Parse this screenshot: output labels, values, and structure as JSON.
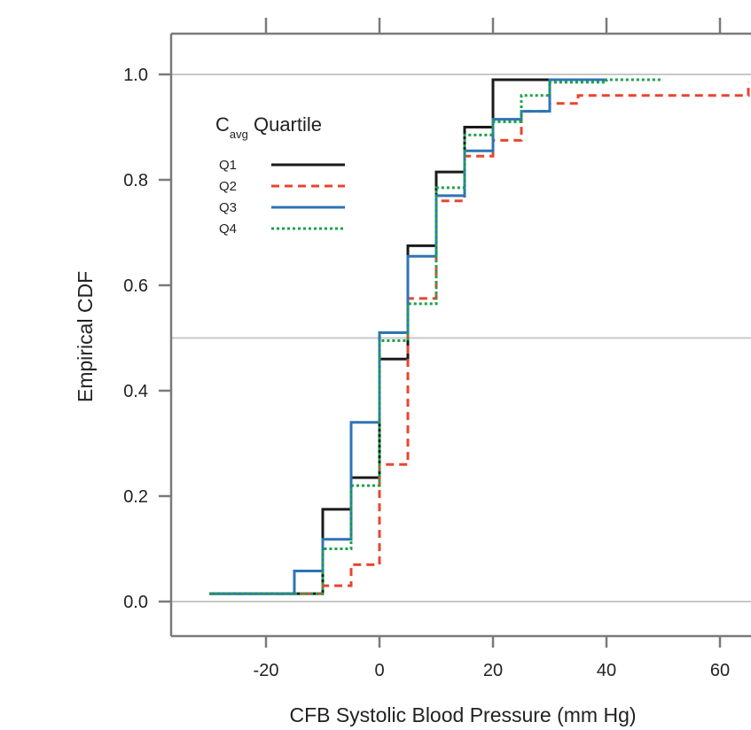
{
  "chart_data": {
    "type": "line",
    "step": true,
    "xlabel": "CFB Systolic Blood Pressure (mm Hg)",
    "ylabel": "Empirical CDF",
    "xlim": [
      -40,
      65
    ],
    "ylim": [
      -0.06,
      1.08
    ],
    "xticks": [
      -20,
      0,
      20,
      40,
      60
    ],
    "xtick_labels": [
      "-20",
      "0",
      "20",
      "40",
      "60"
    ],
    "yticks": [
      0.0,
      0.2,
      0.4,
      0.6,
      0.8,
      1.0
    ],
    "ytick_labels": [
      "0.0",
      "0.2",
      "0.4",
      "0.6",
      "0.8",
      "1.0"
    ],
    "reference_lines_y": [
      0.0,
      0.5,
      1.0
    ],
    "grid": false,
    "legend": {
      "title_main": "C",
      "title_sub": "avg",
      "title_rest": " Quartile",
      "placement": "top-left"
    },
    "series": [
      {
        "name": "Q1",
        "color": "#1a1a1a",
        "dash": "solid",
        "x": [
          -30,
          -10,
          -5,
          0,
          5,
          10,
          15,
          20,
          30,
          40
        ],
        "y": [
          0.015,
          0.175,
          0.235,
          0.46,
          0.675,
          0.815,
          0.9,
          0.99,
          0.99,
          0.99
        ]
      },
      {
        "name": "Q2",
        "color": "#e8452f",
        "dash": "dashed",
        "x": [
          -30,
          -15,
          -10,
          -5,
          0,
          5,
          10,
          15,
          20,
          25,
          30,
          35,
          65
        ],
        "y": [
          0.015,
          0.015,
          0.03,
          0.07,
          0.26,
          0.575,
          0.76,
          0.845,
          0.875,
          0.93,
          0.945,
          0.96,
          0.985
        ]
      },
      {
        "name": "Q3",
        "color": "#2e74b5",
        "dash": "solid",
        "x": [
          -30,
          -15,
          -10,
          -5,
          0,
          5,
          10,
          15,
          20,
          25,
          30,
          40
        ],
        "y": [
          0.015,
          0.058,
          0.118,
          0.34,
          0.51,
          0.655,
          0.77,
          0.855,
          0.915,
          0.93,
          0.99,
          0.99
        ]
      },
      {
        "name": "Q4",
        "color": "#1ba14b",
        "dash": "dotted",
        "x": [
          -30,
          -10,
          -5,
          0,
          5,
          10,
          15,
          20,
          25,
          30,
          40,
          50
        ],
        "y": [
          0.015,
          0.1,
          0.22,
          0.495,
          0.565,
          0.785,
          0.885,
          0.91,
          0.96,
          0.985,
          0.99,
          0.99
        ]
      }
    ]
  }
}
